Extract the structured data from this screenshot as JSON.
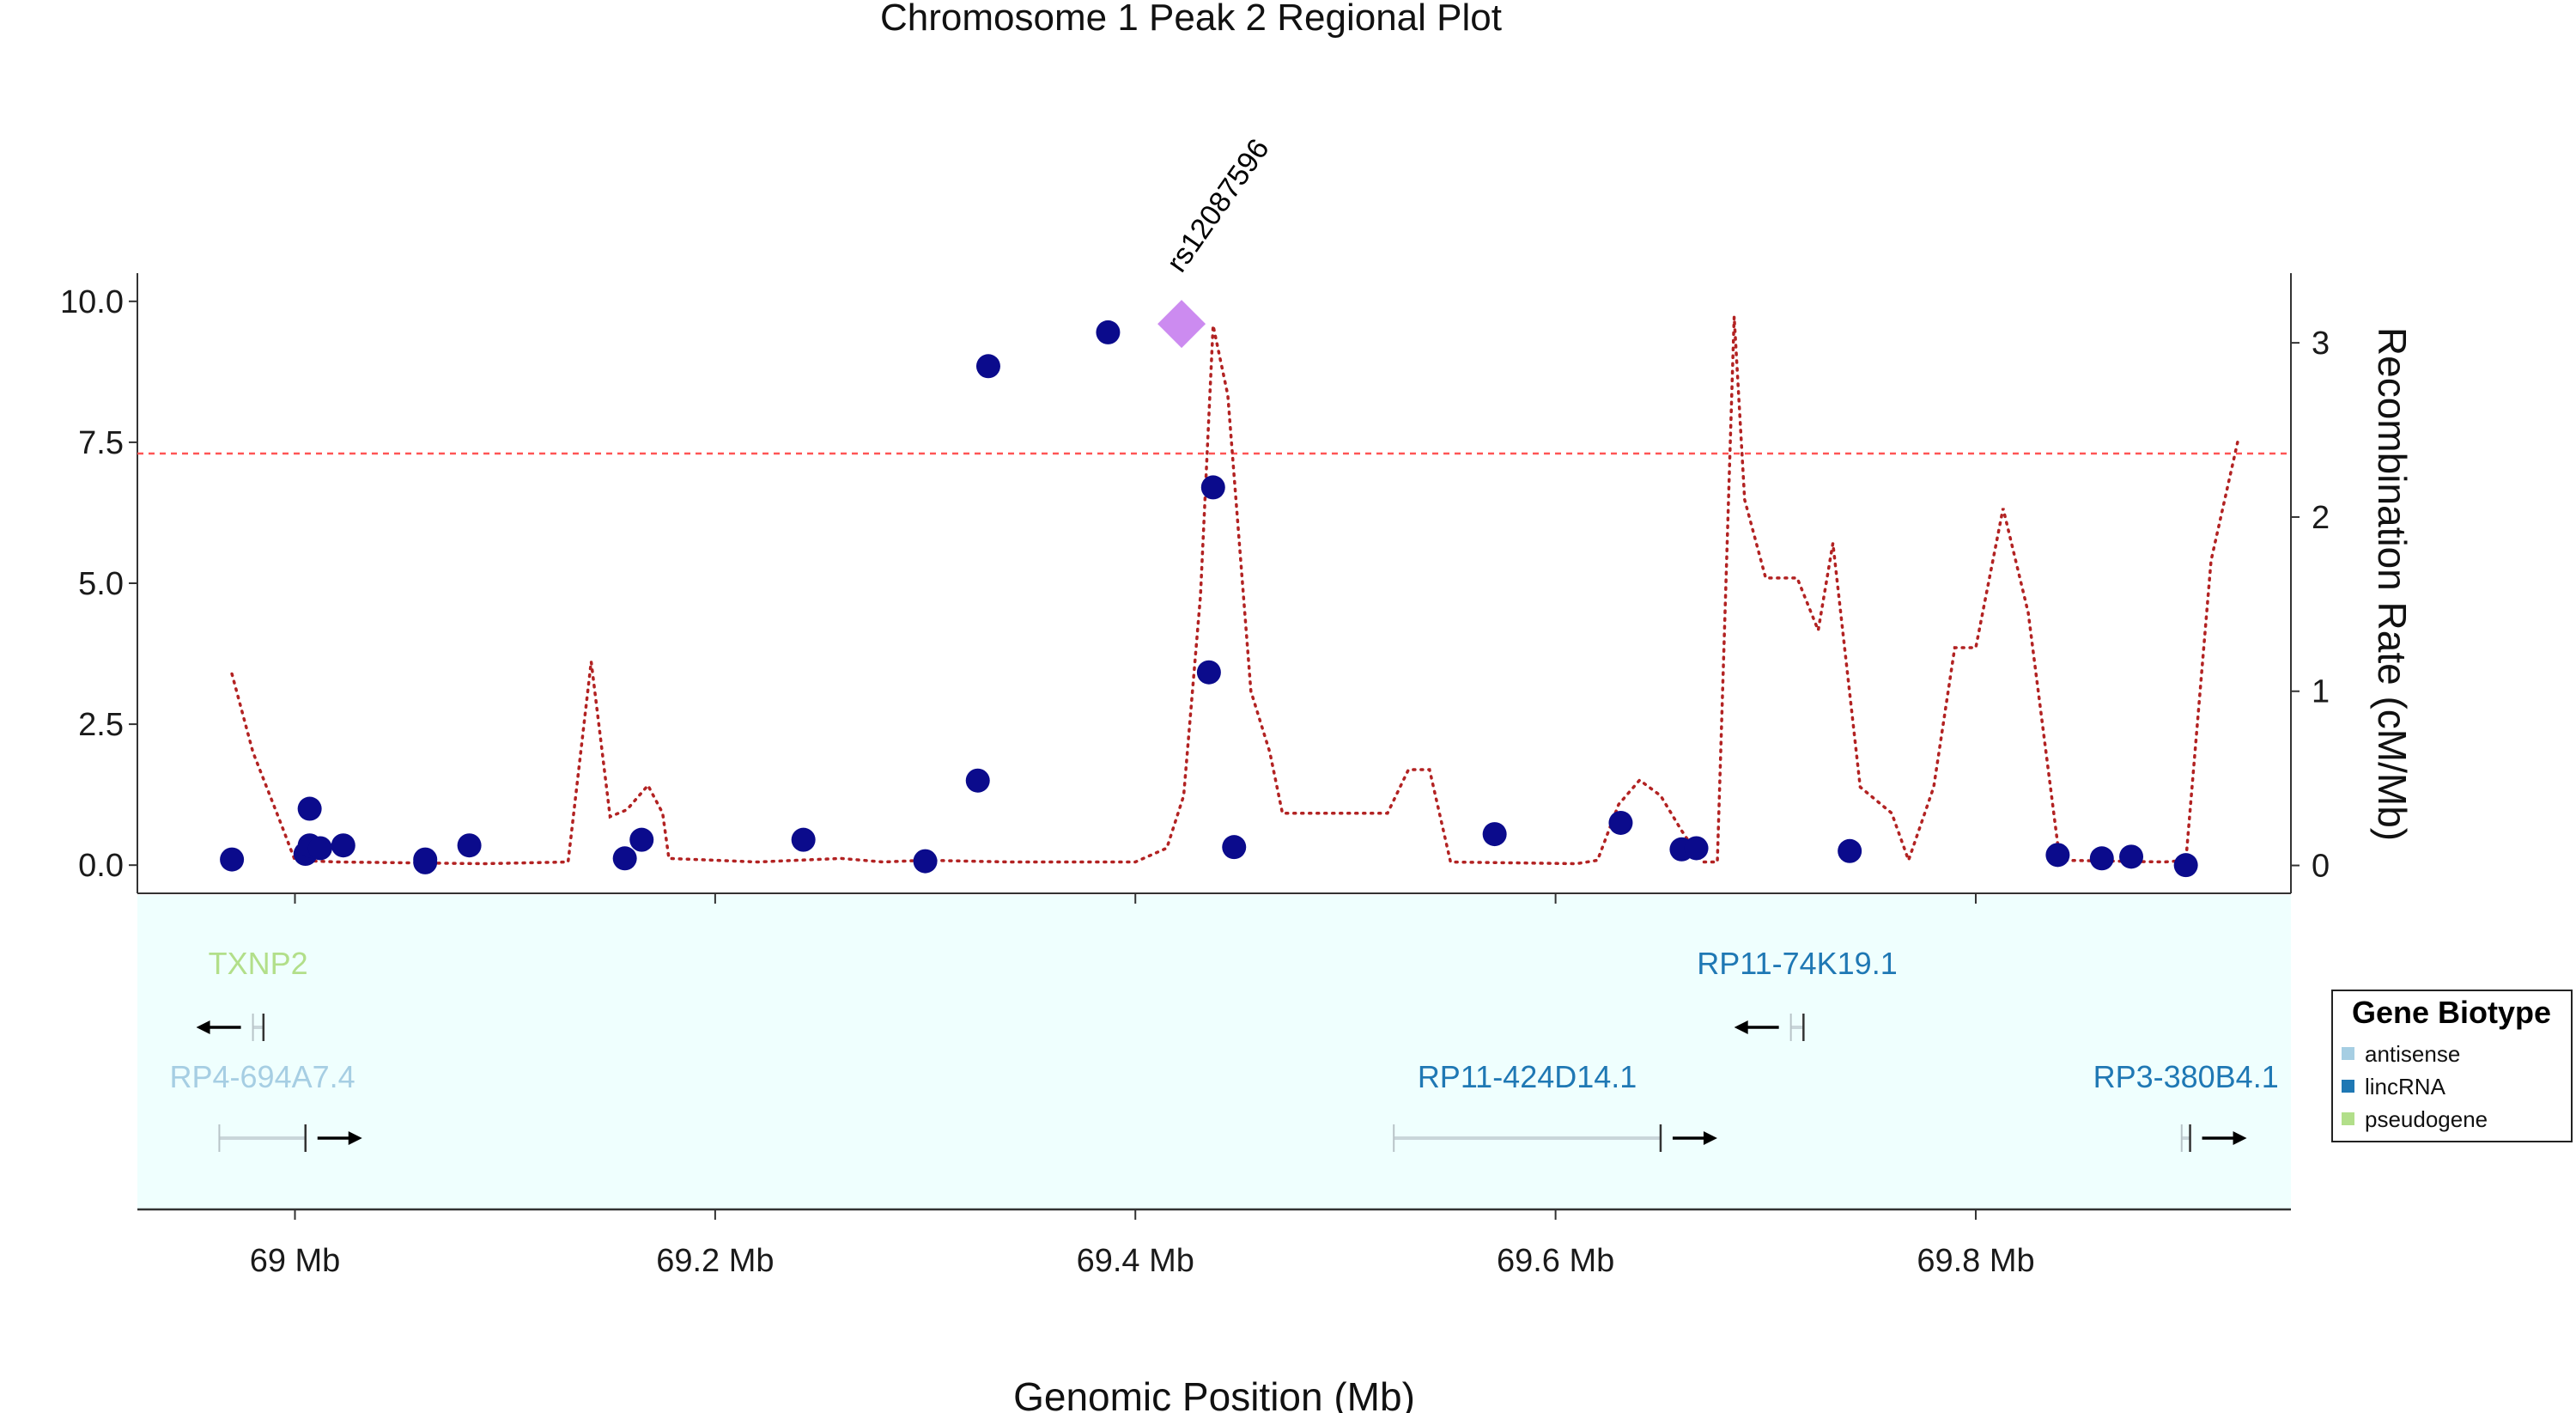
{
  "chart_data": {
    "type": "scatter",
    "title": "Chromosome 1 Peak 2 Regional Plot",
    "xlabel": "Genomic Position (Mb)",
    "ylabel": "",
    "y2label": "Recombination Rate (cM/Mb)",
    "xlim": [
      68.925,
      69.95
    ],
    "ylim": [
      -0.5,
      10.5
    ],
    "y2lim": [
      -0.16,
      3.4
    ],
    "x_ticks": [
      {
        "value": 69.0,
        "label": "69 Mb"
      },
      {
        "value": 69.2,
        "label": "69.2 Mb"
      },
      {
        "value": 69.4,
        "label": "69.4 Mb"
      },
      {
        "value": 69.6,
        "label": "69.6 Mb"
      },
      {
        "value": 69.8,
        "label": "69.8 Mb"
      }
    ],
    "y_ticks": [
      {
        "value": 0.0,
        "label": "0.0"
      },
      {
        "value": 2.5,
        "label": "2.5"
      },
      {
        "value": 5.0,
        "label": "5.0"
      },
      {
        "value": 7.5,
        "label": "7.5"
      },
      {
        "value": 10.0,
        "label": "10.0"
      }
    ],
    "y2_ticks": [
      {
        "value": 0,
        "label": "0"
      },
      {
        "value": 1,
        "label": "1"
      },
      {
        "value": 2,
        "label": "2"
      },
      {
        "value": 3,
        "label": "3"
      }
    ],
    "significance_line": 7.3,
    "snps": [
      {
        "x": 68.97,
        "y": 0.1
      },
      {
        "x": 69.005,
        "y": 0.2
      },
      {
        "x": 69.007,
        "y": 0.35
      },
      {
        "x": 69.007,
        "y": 1.0
      },
      {
        "x": 69.012,
        "y": 0.3
      },
      {
        "x": 69.023,
        "y": 0.35
      },
      {
        "x": 69.062,
        "y": 0.05
      },
      {
        "x": 69.062,
        "y": 0.1
      },
      {
        "x": 69.083,
        "y": 0.35
      },
      {
        "x": 69.157,
        "y": 0.12
      },
      {
        "x": 69.165,
        "y": 0.45
      },
      {
        "x": 69.242,
        "y": 0.45
      },
      {
        "x": 69.3,
        "y": 0.07
      },
      {
        "x": 69.325,
        "y": 1.5
      },
      {
        "x": 69.33,
        "y": 8.85
      },
      {
        "x": 69.387,
        "y": 9.45
      },
      {
        "x": 69.435,
        "y": 3.42
      },
      {
        "x": 69.437,
        "y": 6.7
      },
      {
        "x": 69.447,
        "y": 0.32
      },
      {
        "x": 69.571,
        "y": 0.55
      },
      {
        "x": 69.631,
        "y": 0.75
      },
      {
        "x": 69.66,
        "y": 0.28
      },
      {
        "x": 69.667,
        "y": 0.3
      },
      {
        "x": 69.74,
        "y": 0.25
      },
      {
        "x": 69.839,
        "y": 0.18
      },
      {
        "x": 69.86,
        "y": 0.12
      },
      {
        "x": 69.874,
        "y": 0.15
      },
      {
        "x": 69.9,
        "y": 0.0
      }
    ],
    "lead_snp": {
      "x": 69.422,
      "y": 9.6,
      "label": "rs12087596",
      "color": "#cc8bf0"
    },
    "recombination": [
      [
        68.97,
        1.1
      ],
      [
        68.98,
        0.65
      ],
      [
        68.993,
        0.25
      ],
      [
        69.0,
        0.03
      ],
      [
        69.02,
        0.02
      ],
      [
        69.09,
        0.01
      ],
      [
        69.13,
        0.02
      ],
      [
        69.141,
        1.17
      ],
      [
        69.15,
        0.28
      ],
      [
        69.158,
        0.32
      ],
      [
        69.168,
        0.46
      ],
      [
        69.175,
        0.3
      ],
      [
        69.178,
        0.04
      ],
      [
        69.2,
        0.03
      ],
      [
        69.22,
        0.02
      ],
      [
        69.26,
        0.04
      ],
      [
        69.28,
        0.02
      ],
      [
        69.3,
        0.03
      ],
      [
        69.34,
        0.02
      ],
      [
        69.4,
        0.02
      ],
      [
        69.415,
        0.1
      ],
      [
        69.423,
        0.4
      ],
      [
        69.431,
        1.55
      ],
      [
        69.437,
        3.1
      ],
      [
        69.444,
        2.7
      ],
      [
        69.455,
        1.0
      ],
      [
        69.464,
        0.65
      ],
      [
        69.47,
        0.3
      ],
      [
        69.52,
        0.3
      ],
      [
        69.53,
        0.55
      ],
      [
        69.54,
        0.55
      ],
      [
        69.55,
        0.02
      ],
      [
        69.61,
        0.01
      ],
      [
        69.62,
        0.03
      ],
      [
        69.63,
        0.35
      ],
      [
        69.64,
        0.49
      ],
      [
        69.65,
        0.4
      ],
      [
        69.66,
        0.2
      ],
      [
        69.67,
        0.02
      ],
      [
        69.677,
        0.02
      ],
      [
        69.685,
        3.15
      ],
      [
        69.69,
        2.1
      ],
      [
        69.7,
        1.65
      ],
      [
        69.715,
        1.65
      ],
      [
        69.725,
        1.35
      ],
      [
        69.732,
        1.85
      ],
      [
        69.745,
        0.45
      ],
      [
        69.755,
        0.35
      ],
      [
        69.76,
        0.3
      ],
      [
        69.768,
        0.03
      ],
      [
        69.78,
        0.45
      ],
      [
        69.79,
        1.25
      ],
      [
        69.8,
        1.25
      ],
      [
        69.813,
        2.05
      ],
      [
        69.825,
        1.45
      ],
      [
        69.84,
        0.03
      ],
      [
        69.89,
        0.02
      ],
      [
        69.9,
        0.03
      ],
      [
        69.912,
        1.75
      ],
      [
        69.925,
        2.45
      ]
    ],
    "genes": [
      {
        "name": "TXNP2",
        "biotype": "pseudogene",
        "start": 68.98,
        "end": 68.985,
        "strand": "-",
        "row": 1
      },
      {
        "name": "RP11-74K19.1",
        "biotype": "lincRNA",
        "start": 69.712,
        "end": 69.718,
        "strand": "-",
        "row": 1
      },
      {
        "name": "RP4-694A7.4",
        "biotype": "antisense",
        "start": 68.964,
        "end": 69.005,
        "strand": "+",
        "row": 2
      },
      {
        "name": "RP11-424D14.1",
        "biotype": "lincRNA",
        "start": 69.523,
        "end": 69.65,
        "strand": "+",
        "row": 2
      },
      {
        "name": "RP3-380B4.1",
        "biotype": "lincRNA",
        "start": 69.898,
        "end": 69.902,
        "strand": "+",
        "row": 2
      }
    ],
    "legend": {
      "title": "Gene Biotype",
      "placement": "right",
      "items": [
        {
          "label": "antisense",
          "color": "#a6cee3"
        },
        {
          "label": "lincRNA",
          "color": "#1f78b4"
        },
        {
          "label": "pseudogene",
          "color": "#b2df8a"
        }
      ]
    },
    "colors": {
      "point": "#0b0b8c",
      "recombination": "#b22222",
      "threshold": "#ff5555",
      "gene_panel_bg": "#effffe",
      "axis": "#333333"
    }
  }
}
